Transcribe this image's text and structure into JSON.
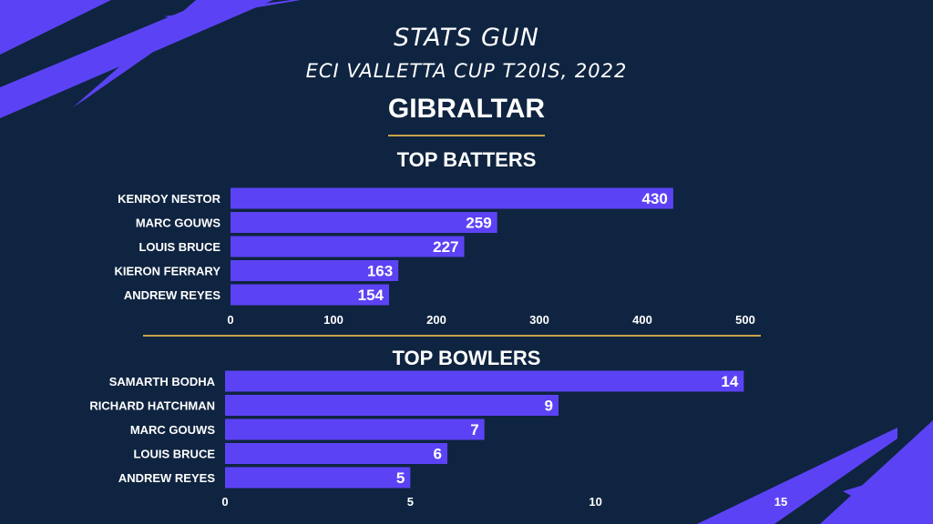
{
  "header": {
    "app_title": "STATS GUN",
    "event_title": "ECI VALLETTA CUP T20IS, 2022",
    "team": "GIBRALTAR"
  },
  "colors": {
    "background": "#0f2440",
    "bar": "#5b43f5",
    "accent_stripe": "#5b43f5",
    "divider": "#c9a24a"
  },
  "chart_data": [
    {
      "type": "bar",
      "orientation": "horizontal",
      "title": "TOP BATTERS",
      "categories": [
        "KENROY NESTOR",
        "MARC GOUWS",
        "LOUIS BRUCE",
        "KIERON FERRARY",
        "ANDREW REYES"
      ],
      "values": [
        430,
        259,
        227,
        163,
        154
      ],
      "xlim": [
        0,
        500
      ],
      "xticks": [
        0,
        100,
        200,
        300,
        400,
        500
      ],
      "grid": false,
      "data_labels": true
    },
    {
      "type": "bar",
      "orientation": "horizontal",
      "title": "TOP BOWLERS",
      "categories": [
        "SAMARTH BODHA",
        "RICHARD HATCHMAN",
        "MARC GOUWS",
        "LOUIS BRUCE",
        "ANDREW REYES"
      ],
      "values": [
        14,
        9,
        7,
        6,
        5
      ],
      "xlim": [
        0,
        15
      ],
      "xticks": [
        0,
        5,
        10,
        15
      ],
      "grid": false,
      "data_labels": true
    }
  ]
}
